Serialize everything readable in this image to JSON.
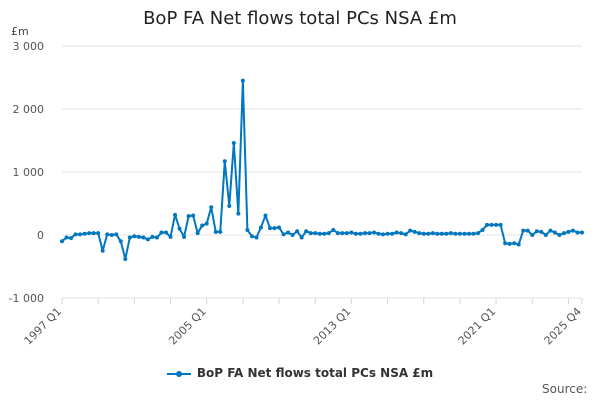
{
  "chart_data": {
    "type": "line",
    "title": "BoP FA Net flows total PCs NSA £m",
    "ylabel": "£m",
    "xlabel": "",
    "ylim": [
      -1000,
      3000
    ],
    "yticks": [
      -1000,
      0,
      1000,
      2000,
      3000
    ],
    "ytick_labels": [
      "-1 000",
      "0",
      "1 000",
      "2 000",
      "3 000"
    ],
    "xtick_labels": [
      "1997 Q1",
      "2005 Q1",
      "2013 Q1",
      "2021 Q1",
      "2025 Q4"
    ],
    "xtick_indices": [
      0,
      32,
      64,
      96,
      115
    ],
    "x_start": "1997 Q1",
    "x_end": "2025 Q4",
    "grid": true,
    "legend_position": "bottom",
    "color": "#0077be",
    "series": [
      {
        "name": "BoP FA Net flows total PCs NSA £m",
        "values": [
          -100,
          -40,
          -50,
          10,
          10,
          20,
          30,
          30,
          30,
          -250,
          10,
          0,
          10,
          -100,
          -380,
          -40,
          -20,
          -30,
          -40,
          -70,
          -30,
          -40,
          40,
          40,
          -30,
          320,
          100,
          -30,
          300,
          310,
          30,
          150,
          180,
          440,
          50,
          50,
          1170,
          460,
          1460,
          340,
          2450,
          80,
          -20,
          -40,
          120,
          310,
          110,
          110,
          120,
          10,
          40,
          0,
          60,
          -40,
          60,
          30,
          30,
          20,
          20,
          30,
          80,
          30,
          30,
          30,
          40,
          20,
          20,
          30,
          30,
          40,
          20,
          10,
          20,
          20,
          40,
          30,
          10,
          70,
          50,
          30,
          20,
          20,
          30,
          20,
          20,
          20,
          30,
          20,
          20,
          20,
          20,
          20,
          30,
          80,
          160,
          160,
          160,
          160,
          -130,
          -140,
          -130,
          -150,
          70,
          70,
          0,
          60,
          50,
          0,
          70,
          40,
          0,
          30,
          50,
          70,
          40,
          40
        ]
      }
    ]
  },
  "source_label": "Source:"
}
